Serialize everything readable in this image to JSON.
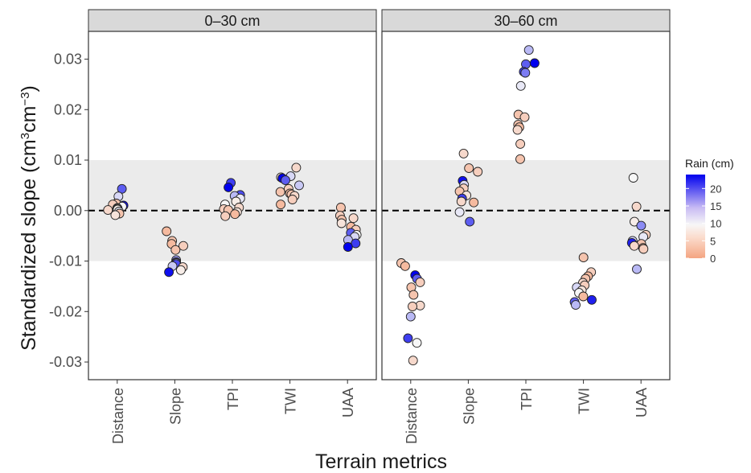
{
  "chart_data": {
    "type": "scatter",
    "ylabel_main": "Standardized slope (cm",
    "ylabel_sup1": "3",
    "ylabel_mid": "cm",
    "ylabel_sup2": "−3",
    "ylabel_end": ")",
    "xlabel": "Terrain metrics",
    "ylim": [
      -0.0335,
      0.0355
    ],
    "yticks": [
      -0.03,
      -0.02,
      -0.01,
      0.0,
      0.01,
      0.02,
      0.03
    ],
    "ytick_labels": [
      "-0.03",
      "-0.02",
      "-0.01",
      "0.00",
      "0.01",
      "0.02",
      "0.03"
    ],
    "shaded_band": [
      -0.01,
      0.01
    ],
    "reference_line": 0,
    "categories": [
      "Distance",
      "Slope",
      "TPI",
      "TWI",
      "UAA"
    ],
    "legend": {
      "title": "Rain (cm)",
      "ticks": [
        20,
        15,
        10,
        5,
        0
      ],
      "range": [
        0,
        24
      ],
      "colors": {
        "low": "#f4a582",
        "mid": "#f7f7f7",
        "high": "#0000ee"
      }
    },
    "panels": [
      {
        "title": "0–30 cm",
        "groups": [
          {
            "category": "Distance",
            "points": [
              {
                "y": 0.0043,
                "rain": 18
              },
              {
                "y": 0.0028,
                "rain": 10
              },
              {
                "y": 0.0014,
                "rain": 3
              },
              {
                "y": 0.0012,
                "rain": 4
              },
              {
                "y": 0.001,
                "rain": 23
              },
              {
                "y": 0.0008,
                "rain": 8
              },
              {
                "y": 0.0005,
                "rain": 6
              },
              {
                "y": 0.0004,
                "rain": 2
              },
              {
                "y": 0.0002,
                "rain": 7
              },
              {
                "y": 0.0001,
                "rain": 5
              },
              {
                "y": -0.0002,
                "rain": 9
              },
              {
                "y": -0.0006,
                "rain": 3
              },
              {
                "y": -0.0009,
                "rain": 6
              }
            ]
          },
          {
            "category": "Slope",
            "points": [
              {
                "y": -0.0041,
                "rain": 2
              },
              {
                "y": -0.006,
                "rain": 3
              },
              {
                "y": -0.0066,
                "rain": 2
              },
              {
                "y": -0.007,
                "rain": 4
              },
              {
                "y": -0.0078,
                "rain": 3
              },
              {
                "y": -0.0098,
                "rain": 14
              },
              {
                "y": -0.0102,
                "rain": 16
              },
              {
                "y": -0.0104,
                "rain": 12
              },
              {
                "y": -0.0106,
                "rain": 19
              },
              {
                "y": -0.011,
                "rain": 11
              },
              {
                "y": -0.0112,
                "rain": 5
              },
              {
                "y": -0.0118,
                "rain": 7
              },
              {
                "y": -0.0122,
                "rain": 23
              }
            ]
          },
          {
            "category": "TPI",
            "points": [
              {
                "y": 0.0055,
                "rain": 20
              },
              {
                "y": 0.0046,
                "rain": 24
              },
              {
                "y": 0.0031,
                "rain": 19
              },
              {
                "y": 0.0029,
                "rain": 12
              },
              {
                "y": 0.0024,
                "rain": 9
              },
              {
                "y": 0.0018,
                "rain": 7
              },
              {
                "y": 0.0012,
                "rain": 8
              },
              {
                "y": 0.0006,
                "rain": 5
              },
              {
                "y": 0.0003,
                "rain": 4
              },
              {
                "y": 0.0001,
                "rain": 3
              },
              {
                "y": -0.0003,
                "rain": 6
              },
              {
                "y": -0.0007,
                "rain": 2
              },
              {
                "y": -0.0011,
                "rain": 4
              }
            ]
          },
          {
            "category": "TWI",
            "points": [
              {
                "y": 0.0085,
                "rain": 5
              },
              {
                "y": 0.0068,
                "rain": 10
              },
              {
                "y": 0.0066,
                "rain": 6
              },
              {
                "y": 0.0064,
                "rain": 24
              },
              {
                "y": 0.006,
                "rain": 18
              },
              {
                "y": 0.005,
                "rain": 11
              },
              {
                "y": 0.0043,
                "rain": 4
              },
              {
                "y": 0.0037,
                "rain": 3
              },
              {
                "y": 0.0034,
                "rain": 2
              },
              {
                "y": 0.0032,
                "rain": 3
              },
              {
                "y": 0.0029,
                "rain": 5
              },
              {
                "y": 0.0022,
                "rain": 4
              },
              {
                "y": 0.0012,
                "rain": 2
              }
            ]
          },
          {
            "category": "UAA",
            "points": [
              {
                "y": 0.0006,
                "rain": 3
              },
              {
                "y": -0.001,
                "rain": 4
              },
              {
                "y": -0.0015,
                "rain": 5
              },
              {
                "y": -0.0018,
                "rain": 3
              },
              {
                "y": -0.0025,
                "rain": 6
              },
              {
                "y": -0.0032,
                "rain": 2
              },
              {
                "y": -0.0038,
                "rain": 4
              },
              {
                "y": -0.0044,
                "rain": 18
              },
              {
                "y": -0.0048,
                "rain": 8
              },
              {
                "y": -0.0052,
                "rain": 10
              },
              {
                "y": -0.0058,
                "rain": 12
              },
              {
                "y": -0.0065,
                "rain": 20
              },
              {
                "y": -0.0072,
                "rain": 24
              }
            ]
          }
        ]
      },
      {
        "title": "30–60 cm",
        "groups": [
          {
            "category": "Distance",
            "points": [
              {
                "y": -0.0104,
                "rain": 3
              },
              {
                "y": -0.011,
                "rain": 2
              },
              {
                "y": -0.0128,
                "rain": 24
              },
              {
                "y": -0.0135,
                "rain": 18
              },
              {
                "y": -0.0142,
                "rain": 4
              },
              {
                "y": -0.0152,
                "rain": 3
              },
              {
                "y": -0.0167,
                "rain": 3
              },
              {
                "y": -0.0188,
                "rain": 5
              },
              {
                "y": -0.019,
                "rain": 4
              },
              {
                "y": -0.021,
                "rain": 12
              },
              {
                "y": -0.0253,
                "rain": 20
              },
              {
                "y": -0.0262,
                "rain": 8
              },
              {
                "y": -0.0297,
                "rain": 5
              }
            ]
          },
          {
            "category": "Slope",
            "points": [
              {
                "y": 0.0113,
                "rain": 5
              },
              {
                "y": 0.0084,
                "rain": 3
              },
              {
                "y": 0.0077,
                "rain": 4
              },
              {
                "y": 0.0059,
                "rain": 23
              },
              {
                "y": 0.0051,
                "rain": 10
              },
              {
                "y": 0.0044,
                "rain": 4
              },
              {
                "y": 0.0038,
                "rain": 3
              },
              {
                "y": 0.003,
                "rain": 6
              },
              {
                "y": 0.0024,
                "rain": 20
              },
              {
                "y": 0.0018,
                "rain": 5
              },
              {
                "y": 0.0016,
                "rain": 2
              },
              {
                "y": -0.0003,
                "rain": 9
              },
              {
                "y": -0.0022,
                "rain": 18
              }
            ]
          },
          {
            "category": "TPI",
            "points": [
              {
                "y": 0.0318,
                "rain": 12
              },
              {
                "y": 0.0292,
                "rain": 24
              },
              {
                "y": 0.029,
                "rain": 18
              },
              {
                "y": 0.0275,
                "rain": 20
              },
              {
                "y": 0.0273,
                "rain": 16
              },
              {
                "y": 0.0247,
                "rain": 9
              },
              {
                "y": 0.019,
                "rain": 3
              },
              {
                "y": 0.0185,
                "rain": 4
              },
              {
                "y": 0.017,
                "rain": 3
              },
              {
                "y": 0.0165,
                "rain": 2
              },
              {
                "y": 0.016,
                "rain": 5
              },
              {
                "y": 0.0132,
                "rain": 4
              },
              {
                "y": 0.0102,
                "rain": 3
              }
            ]
          },
          {
            "category": "TWI",
            "points": [
              {
                "y": -0.0093,
                "rain": 3
              },
              {
                "y": -0.0122,
                "rain": 4
              },
              {
                "y": -0.013,
                "rain": 2
              },
              {
                "y": -0.0135,
                "rain": 3
              },
              {
                "y": -0.0143,
                "rain": 5
              },
              {
                "y": -0.0148,
                "rain": 4
              },
              {
                "y": -0.0152,
                "rain": 10
              },
              {
                "y": -0.0158,
                "rain": 6
              },
              {
                "y": -0.0163,
                "rain": 8
              },
              {
                "y": -0.017,
                "rain": 2
              },
              {
                "y": -0.0177,
                "rain": 22
              },
              {
                "y": -0.0181,
                "rain": 18
              },
              {
                "y": -0.0187,
                "rain": 12
              }
            ]
          },
          {
            "category": "UAA",
            "points": [
              {
                "y": 0.0065,
                "rain": 8
              },
              {
                "y": 0.0008,
                "rain": 5
              },
              {
                "y": -0.0022,
                "rain": 7
              },
              {
                "y": -0.003,
                "rain": 15
              },
              {
                "y": -0.0048,
                "rain": 4
              },
              {
                "y": -0.0052,
                "rain": 9
              },
              {
                "y": -0.006,
                "rain": 10
              },
              {
                "y": -0.0064,
                "rain": 22
              },
              {
                "y": -0.0066,
                "rain": 3
              },
              {
                "y": -0.007,
                "rain": 5
              },
              {
                "y": -0.0074,
                "rain": 2
              },
              {
                "y": -0.0076,
                "rain": 4
              },
              {
                "y": -0.0116,
                "rain": 12
              }
            ]
          }
        ]
      }
    ]
  }
}
